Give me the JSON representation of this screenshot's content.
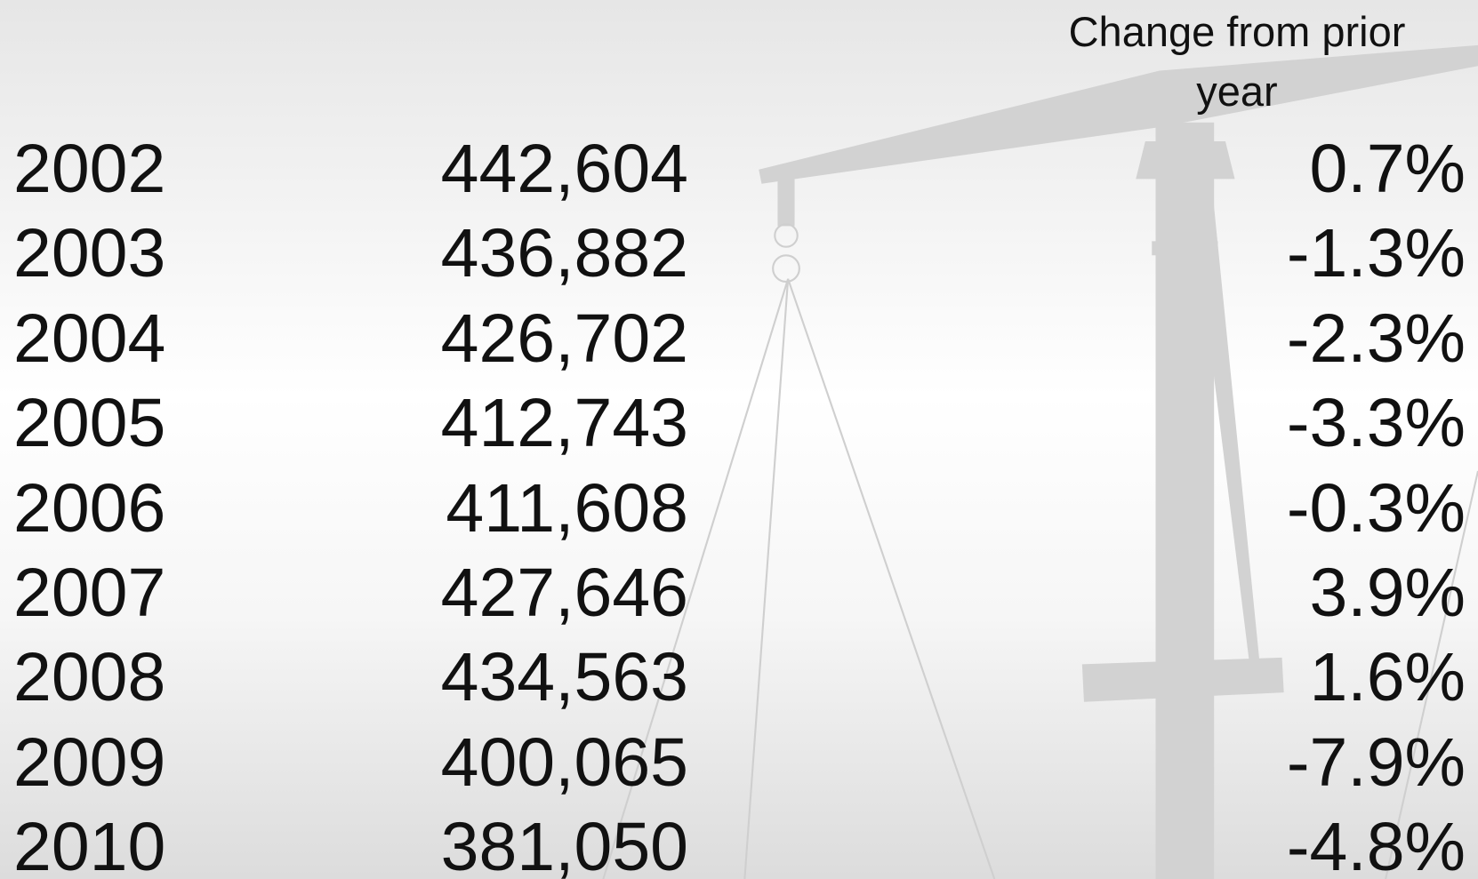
{
  "table": {
    "header": "Change from prior year",
    "rows": [
      [
        "2002",
        "442,604",
        "0.7%"
      ],
      [
        "2003",
        "436,882",
        "-1.3%"
      ],
      [
        "2004",
        "426,702",
        "-2.3%"
      ],
      [
        "2005",
        "412,743",
        "-3.3%"
      ],
      [
        "2006",
        "411,608",
        "-0.3%"
      ],
      [
        "2007",
        "427,646",
        "3.9%"
      ],
      [
        "2008",
        "434,563",
        "1.6%"
      ],
      [
        "2009",
        "400,065",
        "-7.9%"
      ],
      [
        "2010",
        "381,050",
        "-4.8%"
      ]
    ]
  }
}
